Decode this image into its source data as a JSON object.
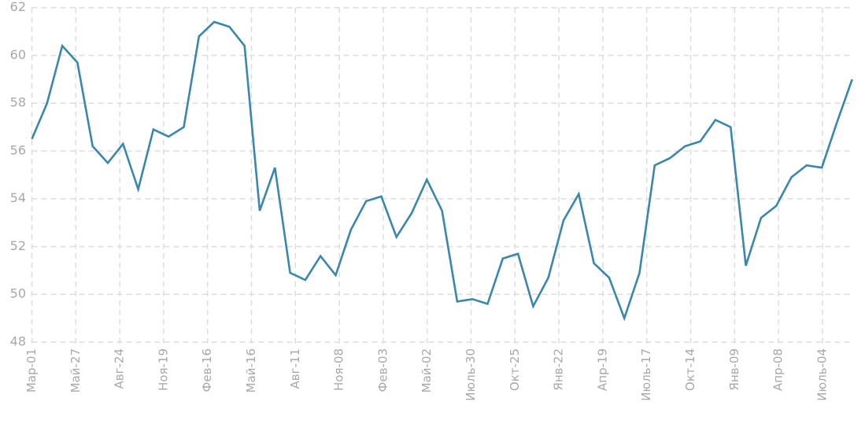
{
  "chart_data": {
    "type": "line",
    "title": "",
    "xlabel": "",
    "ylabel": "",
    "ylim": [
      48,
      62
    ],
    "y_ticks": [
      "48",
      "50",
      "52",
      "54",
      "56",
      "58",
      "60",
      "62"
    ],
    "x_ticks": [
      "Мар-01",
      "Май-27",
      "Авг-24",
      "Ноя-19",
      "Фев-16",
      "Май-16",
      "Авг-11",
      "Ноя-08",
      "Фев-03",
      "Май-02",
      "Июль-30",
      "Окт-25",
      "Янв-22",
      "Апр-19",
      "Июль-17",
      "Окт-14",
      "Янв-09",
      "Апр-08",
      "Июль-04"
    ],
    "x_frequency": "monthly",
    "grid": true,
    "legend": "none",
    "color": "#3a87ad",
    "grid_color": "#dddddd",
    "series": [
      {
        "values": [
          56.5,
          58.0,
          60.4,
          59.7,
          56.2,
          55.5,
          56.3,
          54.4,
          56.9,
          56.6,
          57.0,
          60.8,
          61.4,
          61.2,
          60.4,
          53.5,
          55.3,
          50.9,
          50.6,
          51.6,
          50.8,
          52.7,
          53.9,
          54.1,
          52.4,
          53.4,
          54.8,
          53.5,
          49.7,
          49.8,
          49.6,
          51.5,
          51.7,
          49.5,
          50.7,
          53.1,
          54.2,
          51.3,
          50.7,
          49.0,
          50.9,
          55.4,
          55.7,
          56.2,
          56.4,
          57.3,
          57.0,
          51.2,
          53.2,
          53.7,
          54.9,
          55.4,
          55.3,
          57.2,
          59.0
        ]
      }
    ]
  }
}
